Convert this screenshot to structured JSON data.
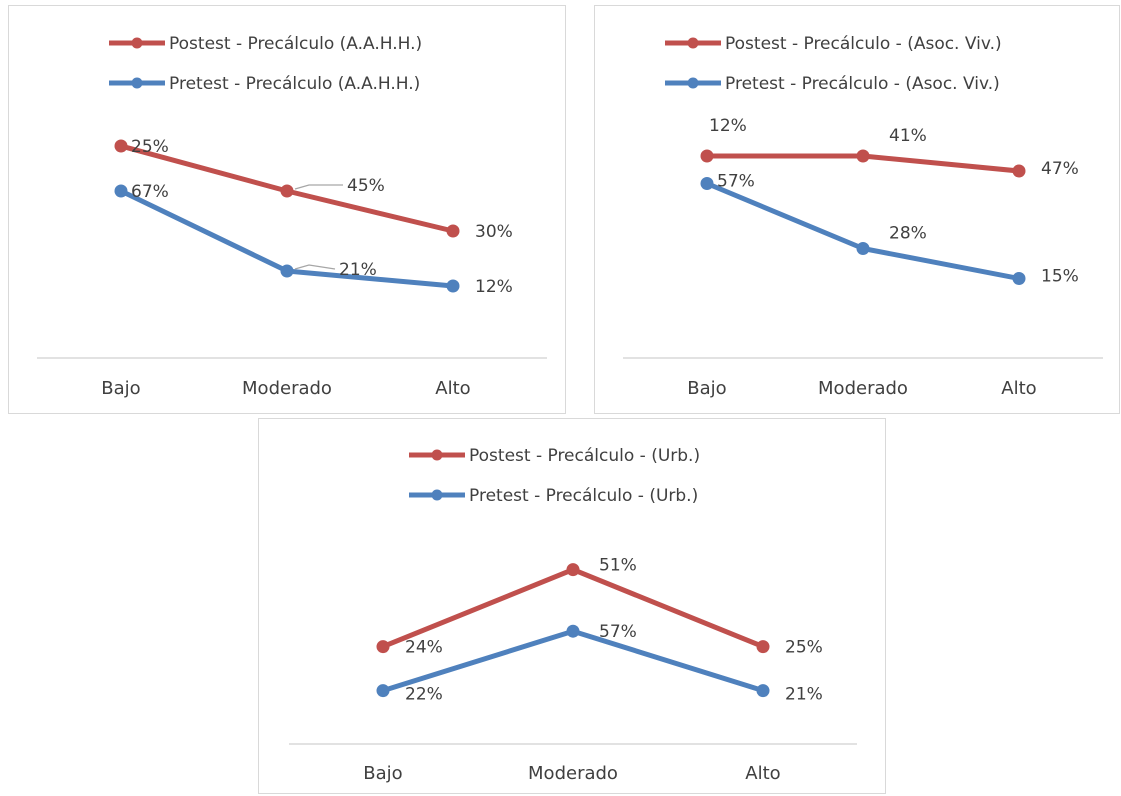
{
  "colors": {
    "postest": "#c0504d",
    "pretest": "#4f81bd",
    "axis": "#d9d9d9",
    "text": "#404040"
  },
  "chart_data": [
    {
      "type": "line",
      "categories": [
        "Bajo",
        "Moderado",
        "Alto"
      ],
      "legend_position": "top",
      "grid": false,
      "series": [
        {
          "name": "Postest -  Precálculo (A.A.H.H.)",
          "color_key": "postest",
          "values": [
            84,
            66,
            50
          ],
          "labels": [
            "25%",
            "45%",
            "30%"
          ]
        },
        {
          "name": "Pretest -  Precálculo (A.A.H.H.)",
          "color_key": "pretest",
          "values": [
            66,
            34,
            28
          ],
          "labels": [
            "67%",
            "21%",
            "12%"
          ]
        }
      ],
      "ylim": [
        0,
        100
      ]
    },
    {
      "type": "line",
      "categories": [
        "Bajo",
        "Moderado",
        "Alto"
      ],
      "legend_position": "top",
      "grid": false,
      "series": [
        {
          "name": "Postest -  Precálculo - (Asoc. Viv.)",
          "color_key": "postest",
          "values": [
            80,
            80,
            74
          ],
          "labels": [
            "12%",
            "41%",
            "47%"
          ]
        },
        {
          "name": "Pretest -  Precálculo - (Asoc. Viv.)",
          "color_key": "pretest",
          "values": [
            69,
            43,
            31
          ],
          "labels": [
            "57%",
            "28%",
            "15%"
          ]
        }
      ],
      "ylim": [
        0,
        100
      ]
    },
    {
      "type": "line",
      "categories": [
        "Bajo",
        "Moderado",
        "Alto"
      ],
      "legend_position": "top",
      "grid": false,
      "series": [
        {
          "name": "Postest - Precálculo - (Urb.)",
          "color_key": "postest",
          "values": [
            42,
            77,
            42
          ],
          "labels": [
            "24%",
            "51%",
            "25%"
          ]
        },
        {
          "name": "Pretest - Precálculo - (Urb.)",
          "color_key": "pretest",
          "values": [
            22,
            49,
            22
          ],
          "labels": [
            "22%",
            "57%",
            "21%"
          ]
        }
      ],
      "ylim": [
        0,
        100
      ]
    }
  ]
}
